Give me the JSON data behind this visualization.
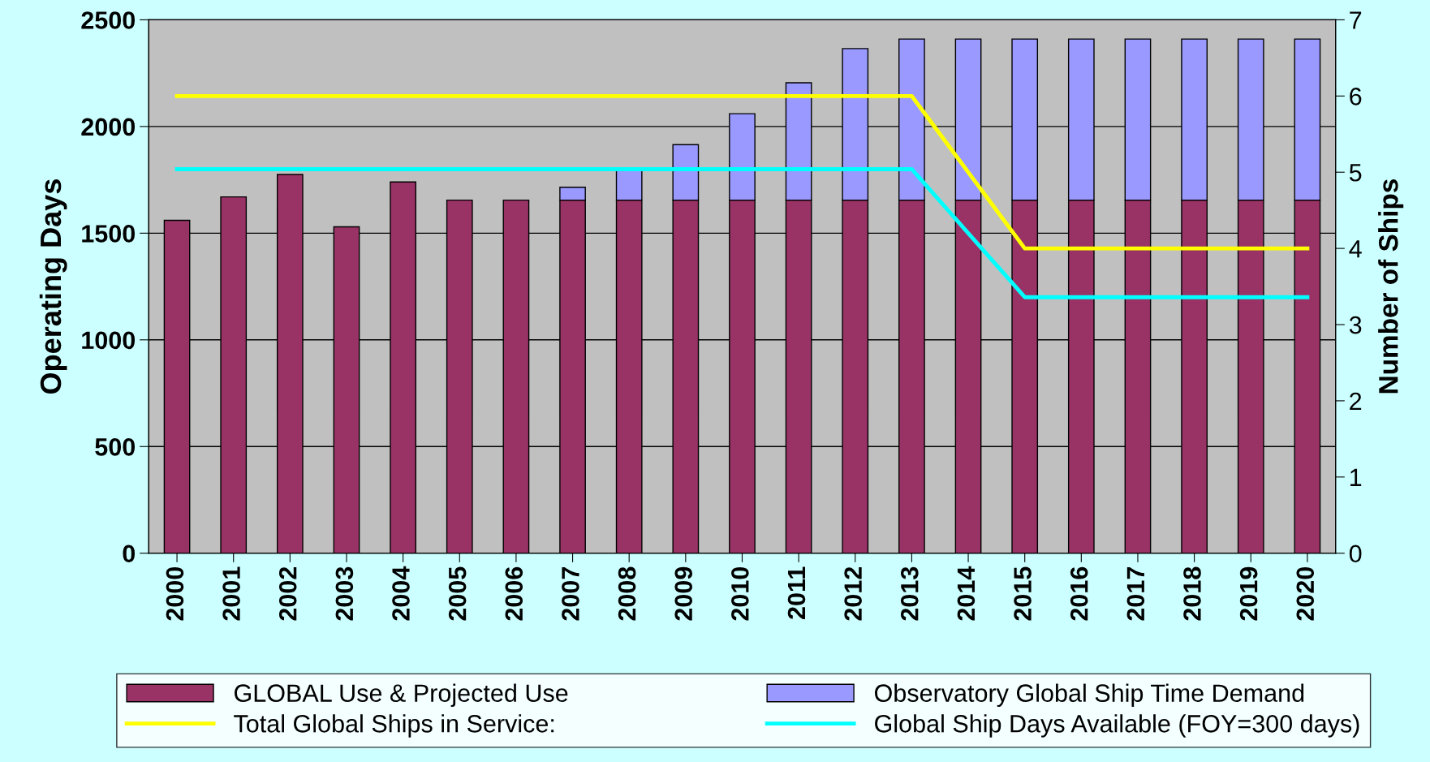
{
  "chart_data": {
    "type": "bar",
    "stacked": true,
    "ylabel": "Operating Days",
    "y2label": "Number of Ships",
    "categories": [
      "2000",
      "2001",
      "2002",
      "2003",
      "2004",
      "2005",
      "2006",
      "2007",
      "2008",
      "2009",
      "2010",
      "2011",
      "2012",
      "2013",
      "2014",
      "2015",
      "2016",
      "2017",
      "2018",
      "2019",
      "2020"
    ],
    "series": [
      {
        "name": "GLOBAL Use & Projected Use",
        "color": "#993366",
        "values": [
          1560,
          1670,
          1775,
          1530,
          1740,
          1655,
          1655,
          1655,
          1655,
          1655,
          1655,
          1655,
          1655,
          1655,
          1655,
          1655,
          1655,
          1655,
          1655,
          1655,
          1655
        ]
      },
      {
        "name": "Observatory Global Ship Time Demand",
        "color": "#9999ff",
        "values": [
          null,
          null,
          null,
          null,
          null,
          null,
          null,
          60,
          145,
          260,
          405,
          550,
          710,
          755,
          755,
          755,
          755,
          755,
          755,
          755,
          755
        ]
      },
      {
        "name": "Total Global Ships in Service:",
        "type": "line",
        "axis": "y2",
        "color": "#ffff00",
        "values": [
          6,
          6,
          6,
          6,
          6,
          6,
          6,
          6,
          6,
          6,
          6,
          6,
          6,
          6,
          5,
          4,
          4,
          4,
          4,
          4,
          4
        ]
      },
      {
        "name": "Global Ship Days Available (FOY=300 days)",
        "type": "line",
        "color": "#00ffff",
        "values": [
          1800,
          1800,
          1800,
          1800,
          1800,
          1800,
          1800,
          1800,
          1800,
          1800,
          1800,
          1800,
          1800,
          1800,
          1500,
          1200,
          1200,
          1200,
          1200,
          1200,
          1200
        ]
      }
    ],
    "ylim": [
      0,
      2500
    ],
    "yticks": [
      0,
      500,
      1000,
      1500,
      2000,
      2500
    ],
    "y2lim": [
      0,
      7
    ],
    "y2ticks": [
      0,
      1,
      2,
      3,
      4,
      5,
      6,
      7
    ],
    "grid": "y",
    "legend": "bottom",
    "marker": "none",
    "line_style": "solid"
  }
}
